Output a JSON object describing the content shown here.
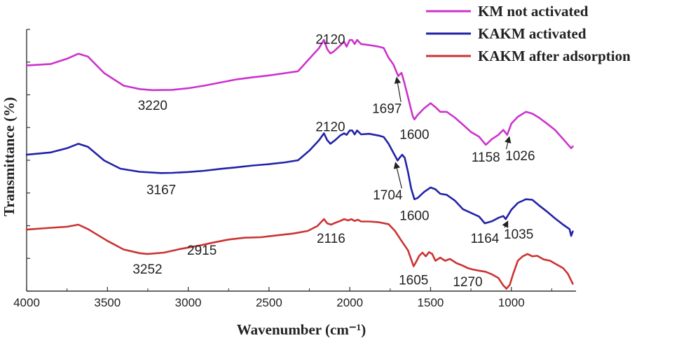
{
  "chart_data": {
    "type": "line",
    "title": "",
    "xlabel": "Wavenumber (cm⁻¹)",
    "ylabel": "Transmittance (%)",
    "xlim": [
      4000,
      600
    ],
    "x_reversed": true,
    "xticks": [
      4000,
      3500,
      3000,
      2500,
      2000,
      1500,
      1000
    ],
    "y_unit": "arbitrary (offset traces)",
    "ylim": [
      0,
      100
    ],
    "y_ticks_labeled": false,
    "grid": false,
    "legend_position": "top-right",
    "series": [
      {
        "name": "KM not activated",
        "color": "#cc33cc",
        "points": [
          [
            4000,
            86.2
          ],
          [
            3850,
            86.8
          ],
          [
            3750,
            88.8
          ],
          [
            3680,
            90.7
          ],
          [
            3620,
            89.6
          ],
          [
            3520,
            83.3
          ],
          [
            3400,
            78.5
          ],
          [
            3300,
            77.2
          ],
          [
            3220,
            76.8
          ],
          [
            3100,
            76.9
          ],
          [
            3000,
            77.5
          ],
          [
            2900,
            78.5
          ],
          [
            2800,
            79.7
          ],
          [
            2700,
            80.9
          ],
          [
            2600,
            81.7
          ],
          [
            2500,
            82.4
          ],
          [
            2400,
            83.3
          ],
          [
            2320,
            84.0
          ],
          [
            2250,
            88.8
          ],
          [
            2190,
            92.9
          ],
          [
            2160,
            96.0
          ],
          [
            2140,
            92.5
          ],
          [
            2120,
            90.8
          ],
          [
            2100,
            91.5
          ],
          [
            2060,
            93.8
          ],
          [
            2035,
            95.3
          ],
          [
            2020,
            93.4
          ],
          [
            2000,
            96.0
          ],
          [
            1985,
            95.9
          ],
          [
            1970,
            94.4
          ],
          [
            1955,
            96.0
          ],
          [
            1930,
            94.4
          ],
          [
            1880,
            94.0
          ],
          [
            1820,
            93.4
          ],
          [
            1790,
            92.9
          ],
          [
            1760,
            89.2
          ],
          [
            1730,
            86.6
          ],
          [
            1700,
            82.1
          ],
          [
            1697,
            82.4
          ],
          [
            1680,
            83.4
          ],
          [
            1665,
            80.3
          ],
          [
            1640,
            74.2
          ],
          [
            1610,
            66.8
          ],
          [
            1600,
            65.6
          ],
          [
            1580,
            67.3
          ],
          [
            1540,
            69.8
          ],
          [
            1500,
            71.8
          ],
          [
            1470,
            70.3
          ],
          [
            1440,
            68.5
          ],
          [
            1400,
            68.5
          ],
          [
            1350,
            66.3
          ],
          [
            1300,
            63.6
          ],
          [
            1250,
            60.8
          ],
          [
            1200,
            59.0
          ],
          [
            1158,
            55.9
          ],
          [
            1120,
            58.1
          ],
          [
            1080,
            59.7
          ],
          [
            1050,
            61.6
          ],
          [
            1026,
            59.7
          ],
          [
            1000,
            64.0
          ],
          [
            960,
            66.6
          ],
          [
            910,
            68.5
          ],
          [
            870,
            67.8
          ],
          [
            830,
            66.3
          ],
          [
            780,
            64.0
          ],
          [
            730,
            61.6
          ],
          [
            680,
            58.1
          ],
          [
            630,
            54.6
          ],
          [
            620,
            55.3
          ]
        ]
      },
      {
        "name": "KAKM activated",
        "color": "#2222aa",
        "points": [
          [
            4000,
            52.1
          ],
          [
            3850,
            53.0
          ],
          [
            3750,
            54.6
          ],
          [
            3680,
            56.3
          ],
          [
            3620,
            55.1
          ],
          [
            3520,
            49.9
          ],
          [
            3420,
            46.8
          ],
          [
            3300,
            45.6
          ],
          [
            3167,
            45.1
          ],
          [
            3100,
            45.2
          ],
          [
            3000,
            45.5
          ],
          [
            2900,
            46.0
          ],
          [
            2800,
            46.7
          ],
          [
            2700,
            47.3
          ],
          [
            2600,
            48.0
          ],
          [
            2500,
            48.5
          ],
          [
            2400,
            49.2
          ],
          [
            2320,
            50.0
          ],
          [
            2250,
            53.7
          ],
          [
            2190,
            57.7
          ],
          [
            2160,
            60.3
          ],
          [
            2140,
            57.7
          ],
          [
            2120,
            56.3
          ],
          [
            2090,
            57.7
          ],
          [
            2060,
            59.4
          ],
          [
            2035,
            60.3
          ],
          [
            2020,
            59.7
          ],
          [
            2000,
            61.4
          ],
          [
            1985,
            61.4
          ],
          [
            1970,
            59.9
          ],
          [
            1955,
            61.4
          ],
          [
            1930,
            59.9
          ],
          [
            1880,
            60.1
          ],
          [
            1820,
            59.4
          ],
          [
            1790,
            58.9
          ],
          [
            1760,
            56.3
          ],
          [
            1730,
            52.9
          ],
          [
            1704,
            49.9
          ],
          [
            1690,
            51.1
          ],
          [
            1675,
            52.1
          ],
          [
            1660,
            50.9
          ],
          [
            1640,
            45.6
          ],
          [
            1620,
            39.2
          ],
          [
            1600,
            35.1
          ],
          [
            1580,
            35.6
          ],
          [
            1540,
            37.9
          ],
          [
            1500,
            39.6
          ],
          [
            1470,
            38.9
          ],
          [
            1440,
            37.2
          ],
          [
            1400,
            36.8
          ],
          [
            1350,
            34.6
          ],
          [
            1300,
            31.3
          ],
          [
            1250,
            29.9
          ],
          [
            1200,
            28.5
          ],
          [
            1164,
            25.9
          ],
          [
            1120,
            26.7
          ],
          [
            1080,
            28.0
          ],
          [
            1050,
            28.7
          ],
          [
            1035,
            27.5
          ],
          [
            1000,
            31.1
          ],
          [
            960,
            33.7
          ],
          [
            910,
            35.1
          ],
          [
            870,
            34.9
          ],
          [
            830,
            32.8
          ],
          [
            780,
            30.4
          ],
          [
            730,
            27.8
          ],
          [
            680,
            25.4
          ],
          [
            640,
            23.7
          ],
          [
            630,
            21.1
          ],
          [
            620,
            22.8
          ]
        ]
      },
      {
        "name": "KAKM after adsorption",
        "color": "#cc3333",
        "points": [
          [
            4000,
            23.5
          ],
          [
            3850,
            24.2
          ],
          [
            3750,
            24.6
          ],
          [
            3680,
            25.4
          ],
          [
            3620,
            23.7
          ],
          [
            3500,
            19.2
          ],
          [
            3400,
            15.9
          ],
          [
            3300,
            14.5
          ],
          [
            3252,
            14.2
          ],
          [
            3150,
            14.7
          ],
          [
            3050,
            16.1
          ],
          [
            2915,
            17.6
          ],
          [
            2850,
            18.5
          ],
          [
            2750,
            19.7
          ],
          [
            2650,
            20.4
          ],
          [
            2550,
            20.6
          ],
          [
            2450,
            21.3
          ],
          [
            2350,
            22.0
          ],
          [
            2260,
            23.0
          ],
          [
            2200,
            24.9
          ],
          [
            2160,
            27.5
          ],
          [
            2140,
            25.9
          ],
          [
            2116,
            25.4
          ],
          [
            2090,
            26.1
          ],
          [
            2060,
            26.8
          ],
          [
            2035,
            27.5
          ],
          [
            2010,
            27.0
          ],
          [
            1990,
            27.5
          ],
          [
            1970,
            26.8
          ],
          [
            1950,
            27.3
          ],
          [
            1930,
            26.6
          ],
          [
            1880,
            26.6
          ],
          [
            1820,
            26.3
          ],
          [
            1760,
            25.6
          ],
          [
            1720,
            23.0
          ],
          [
            1680,
            19.2
          ],
          [
            1640,
            15.6
          ],
          [
            1620,
            12.1
          ],
          [
            1605,
            9.5
          ],
          [
            1590,
            11.1
          ],
          [
            1570,
            13.5
          ],
          [
            1550,
            14.7
          ],
          [
            1530,
            13.3
          ],
          [
            1510,
            14.9
          ],
          [
            1490,
            14.2
          ],
          [
            1470,
            11.6
          ],
          [
            1440,
            12.8
          ],
          [
            1410,
            11.6
          ],
          [
            1380,
            12.3
          ],
          [
            1340,
            10.7
          ],
          [
            1300,
            9.7
          ],
          [
            1270,
            8.8
          ],
          [
            1240,
            8.3
          ],
          [
            1200,
            7.8
          ],
          [
            1160,
            7.4
          ],
          [
            1120,
            6.4
          ],
          [
            1080,
            5.0
          ],
          [
            1050,
            2.2
          ],
          [
            1030,
            0.9
          ],
          [
            1010,
            2.4
          ],
          [
            990,
            6.4
          ],
          [
            960,
            11.6
          ],
          [
            930,
            13.3
          ],
          [
            900,
            14.2
          ],
          [
            870,
            13.3
          ],
          [
            840,
            13.5
          ],
          [
            800,
            12.1
          ],
          [
            760,
            11.6
          ],
          [
            720,
            10.2
          ],
          [
            680,
            8.8
          ],
          [
            650,
            6.6
          ],
          [
            620,
            2.8
          ]
        ]
      }
    ],
    "annotations": [
      {
        "text": "2120",
        "series": 0,
        "at": 2120,
        "dy": -14,
        "arrow": false
      },
      {
        "text": "3220",
        "series": 0,
        "at": 3220,
        "dy": 28,
        "arrow": false
      },
      {
        "text": "1697",
        "series": 0,
        "at": 1697,
        "arrow": true,
        "to": [
          1770,
          68
        ]
      },
      {
        "text": "1600",
        "series": 0,
        "at": 1600,
        "dy": 28,
        "arrow": false
      },
      {
        "text": "1158",
        "series": 0,
        "at": 1158,
        "dy": 24,
        "arrow": false
      },
      {
        "text": "1026",
        "series": 0,
        "at": 1026,
        "arrow": true,
        "to": [
          945,
          50
        ]
      },
      {
        "text": "2120",
        "series": 1,
        "at": 2120,
        "dy": -18,
        "arrow": false
      },
      {
        "text": "3167",
        "series": 1,
        "at": 3167,
        "dy": 30,
        "arrow": false
      },
      {
        "text": "1704",
        "series": 1,
        "at": 1704,
        "arrow": true,
        "to": [
          1765,
          35
        ]
      },
      {
        "text": "1600",
        "series": 1,
        "at": 1600,
        "dy": 30,
        "arrow": false
      },
      {
        "text": "1164",
        "series": 1,
        "at": 1164,
        "dy": 28,
        "arrow": false
      },
      {
        "text": "1035",
        "series": 1,
        "at": 1035,
        "arrow": true,
        "to": [
          955,
          20
        ]
      },
      {
        "text": "2116",
        "series": 2,
        "at": 2116,
        "dy": 26,
        "arrow": false
      },
      {
        "text": "3252",
        "series": 2,
        "at": 3252,
        "dy": 28,
        "arrow": false
      },
      {
        "text": "2915",
        "series": 2,
        "at": 2915,
        "dy": 14,
        "arrow": false
      },
      {
        "text": "1605",
        "series": 2,
        "at": 1605,
        "dy": 26,
        "arrow": false
      },
      {
        "text": "1270",
        "series": 2,
        "at": 1270,
        "dy": 26,
        "arrow": false
      }
    ]
  }
}
